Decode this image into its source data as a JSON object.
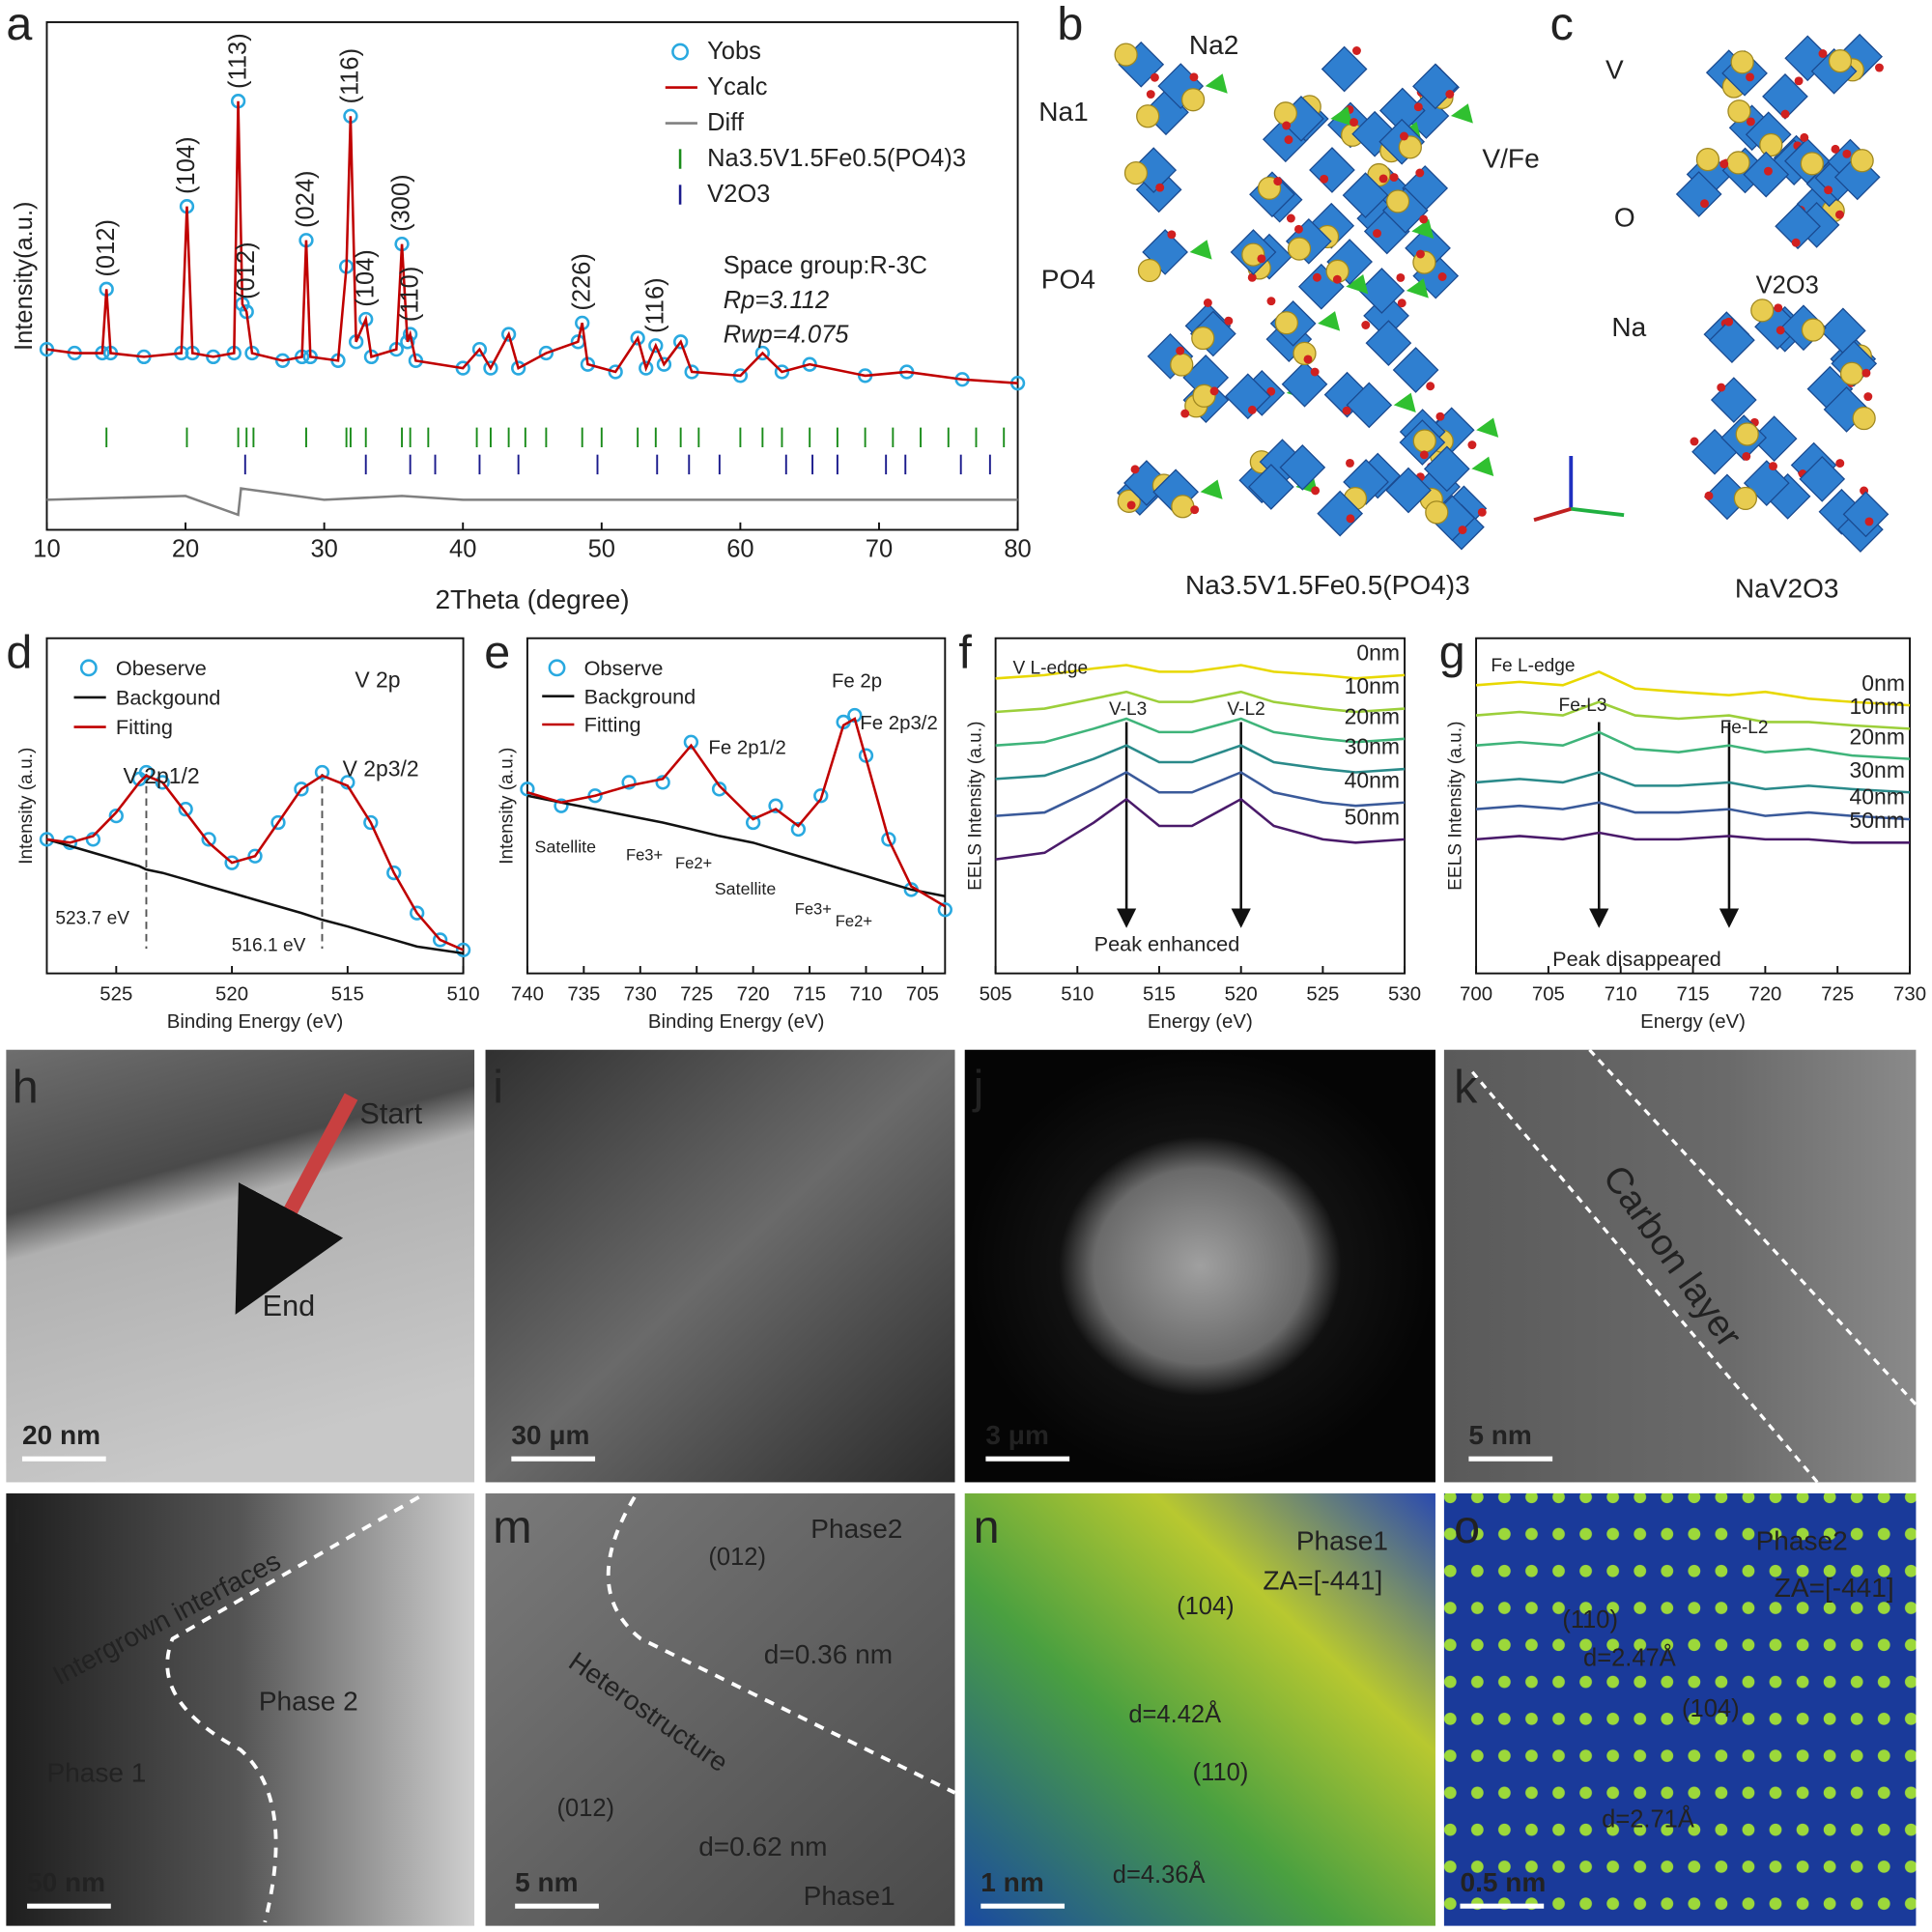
{
  "chart_data": [
    {
      "panel": "a",
      "type": "line",
      "xlabel": "2Theta (degree)",
      "ylabel": "Intensity(a.u.)",
      "xlim": [
        10,
        80
      ],
      "ylim": [
        -30,
        105
      ],
      "xticks": [
        10,
        20,
        30,
        40,
        50,
        60,
        70,
        80
      ],
      "legend": "upper-right",
      "x": [
        10,
        12,
        14,
        14.3,
        14.6,
        17,
        19.7,
        20.1,
        20.5,
        22,
        23.5,
        23.8,
        24.1,
        24.4,
        24.8,
        27,
        28.4,
        28.7,
        29,
        31,
        31.6,
        31.9,
        32.3,
        33,
        33.4,
        35.2,
        35.6,
        36,
        36.2,
        36.6,
        40,
        41.2,
        42,
        43.3,
        44,
        46,
        48.3,
        48.6,
        49,
        51,
        52.6,
        53.2,
        53.9,
        54.5,
        55.7,
        56.5,
        60,
        61.6,
        63,
        65,
        69,
        72,
        76,
        80
      ],
      "series": [
        {
          "name": "Yobs",
          "color": "#29a9e0",
          "marker": "circle",
          "values": [
            18,
            17,
            17,
            34,
            17,
            16,
            17,
            56,
            17,
            16,
            17,
            84,
            30,
            28,
            17,
            15,
            16,
            47,
            16,
            15,
            40,
            80,
            20,
            26,
            16,
            18,
            46,
            20,
            22,
            15,
            13,
            18,
            13,
            22,
            13,
            17,
            20,
            25,
            14,
            12,
            21,
            13,
            19,
            14,
            20,
            12,
            11,
            17,
            12,
            14,
            11,
            12,
            10,
            9
          ]
        },
        {
          "name": "Ycalc",
          "color": "#c00000",
          "marker": "line",
          "values": [
            18,
            17,
            17,
            34,
            17,
            16,
            17,
            56,
            17,
            16,
            17,
            84,
            30,
            28,
            17,
            15,
            16,
            47,
            16,
            15,
            40,
            80,
            20,
            26,
            16,
            18,
            46,
            20,
            22,
            15,
            13,
            18,
            13,
            22,
            13,
            17,
            20,
            25,
            14,
            12,
            21,
            13,
            19,
            14,
            20,
            12,
            11,
            17,
            12,
            14,
            11,
            12,
            10,
            9
          ]
        },
        {
          "name": "Diff",
          "color": "#808080",
          "marker": "line",
          "x": [
            10,
            20,
            23.8,
            24,
            30,
            35.6,
            40,
            50,
            60,
            70,
            80
          ],
          "values": [
            -22,
            -21,
            -26,
            -19,
            -22,
            -21,
            -22,
            -22,
            -22,
            -22,
            -22
          ]
        }
      ],
      "reflections": [
        {
          "name": "Na3.5V1.5Fe0.5(PO4)3",
          "color": "#1a8c1a",
          "x": [
            14.3,
            20.1,
            23.8,
            24.4,
            24.9,
            28.7,
            31.6,
            31.9,
            33,
            35.6,
            36.2,
            37.5,
            41,
            42,
            43.3,
            44.5,
            46,
            48.6,
            50,
            52.6,
            53.9,
            55.7,
            57,
            60,
            61.6,
            63,
            65,
            67,
            69,
            71,
            73,
            75,
            77,
            79
          ]
        },
        {
          "name": "V2O3",
          "color": "#1a1a8c",
          "x": [
            24.3,
            33,
            36.2,
            38,
            41.2,
            44,
            49.7,
            54,
            56.3,
            58.5,
            63.3,
            65.2,
            67,
            70.5,
            71.9,
            75.9,
            78
          ]
        }
      ],
      "peak_labels": [
        {
          "text": "(012)",
          "x": 14.3,
          "color": "#1a8c1a"
        },
        {
          "text": "(104)",
          "x": 20.1,
          "color": "#1a8c1a"
        },
        {
          "text": "(113)",
          "x": 23.8,
          "color": "#1a8c1a"
        },
        {
          "text": "(012)",
          "x": 24.4,
          "color": "#1a1a8c"
        },
        {
          "text": "(024)",
          "x": 28.7,
          "color": "#1a8c1a"
        },
        {
          "text": "(116)",
          "x": 31.9,
          "color": "#1a8c1a"
        },
        {
          "text": "(104)",
          "x": 33,
          "color": "#1a1a8c"
        },
        {
          "text": "(300)",
          "x": 35.6,
          "color": "#1a8c1a"
        },
        {
          "text": "(110)",
          "x": 36.2,
          "color": "#1a1a8c"
        },
        {
          "text": "(226)",
          "x": 48.6,
          "color": "#1a8c1a"
        },
        {
          "text": "(116)",
          "x": 53.9,
          "color": "#1a1a8c"
        }
      ],
      "annotations": [
        "Space group:R-3C",
        "Rp=3.112",
        "Rwp=4.075"
      ]
    },
    {
      "panel": "d",
      "type": "line",
      "xlabel": "Binding Energy (eV)",
      "ylabel": "Intensity (a.u.)",
      "xlim": [
        528,
        510
      ],
      "ylim": [
        0,
        100
      ],
      "xticks": [
        525,
        520,
        515,
        510
      ],
      "legend": "upper-left",
      "marker_style": "dashed",
      "markers": [
        523.7,
        516.1
      ],
      "x": [
        528,
        527,
        526,
        525,
        524,
        523.7,
        523,
        522,
        521,
        520,
        519,
        518,
        517,
        516.1,
        515,
        514,
        513,
        512,
        511,
        510
      ],
      "series": [
        {
          "name": "Obeserve",
          "color": "#29a9e0",
          "marker": "circle",
          "values": [
            40,
            39,
            40,
            47,
            58,
            60,
            57,
            49,
            40,
            33,
            35,
            45,
            55,
            60,
            57,
            45,
            30,
            18,
            10,
            7
          ]
        },
        {
          "name": "Backgound",
          "color": "#111111",
          "marker": "line",
          "values": [
            40,
            38,
            36,
            34,
            32,
            31,
            30,
            28,
            26,
            24,
            22,
            20,
            18,
            16,
            14,
            12,
            10,
            8,
            7,
            6
          ]
        },
        {
          "name": "Fitting",
          "color": "#c00000",
          "marker": "line",
          "values": [
            40,
            39,
            41,
            48,
            57,
            59,
            57,
            48,
            39,
            33,
            35,
            45,
            55,
            59,
            56,
            45,
            30,
            18,
            10,
            7
          ]
        }
      ],
      "annotations": [
        "V 2p",
        "V 2p1/2",
        "V 2p3/2",
        "523.7 eV",
        "516.1 eV"
      ]
    },
    {
      "panel": "e",
      "type": "line",
      "xlabel": "Binding Energy (eV)",
      "ylabel": "Intensity (a.u.)",
      "xlim": [
        740,
        703
      ],
      "ylim": [
        0,
        100
      ],
      "xticks": [
        740,
        735,
        730,
        725,
        720,
        715,
        710,
        705
      ],
      "legend": "upper-left",
      "x": [
        740,
        737,
        734,
        731,
        728,
        725.5,
        723,
        720,
        718,
        716,
        714,
        712,
        711,
        710,
        708,
        706,
        703
      ],
      "series": [
        {
          "name": "Observe",
          "color": "#29a9e0",
          "marker": "circle",
          "values": [
            55,
            50,
            53,
            57,
            57,
            69,
            55,
            45,
            50,
            43,
            53,
            75,
            77,
            65,
            40,
            25,
            19
          ]
        },
        {
          "name": "Background",
          "color": "#111111",
          "marker": "line",
          "values": [
            53,
            51,
            49,
            47,
            45,
            43,
            41,
            39,
            37,
            35,
            33,
            31,
            30,
            29,
            27,
            25,
            23
          ]
        },
        {
          "name": "Fitting",
          "color": "#c00000",
          "marker": "line",
          "values": [
            54,
            51,
            53,
            56,
            58,
            68,
            56,
            46,
            49,
            44,
            52,
            74,
            76,
            64,
            40,
            26,
            20
          ]
        }
      ],
      "annotations": [
        "Fe 2p",
        "Fe 2p1/2",
        "Fe 2p3/2",
        "Satellite",
        "Fe3+",
        "Fe2+",
        "Satellite",
        "Fe3+",
        "Fe2+"
      ]
    },
    {
      "panel": "f",
      "type": "line",
      "xlabel": "Energy (eV)",
      "ylabel": "EELS Intensity (a.u.)",
      "xlim": [
        505,
        530
      ],
      "ylim": [
        0,
        100
      ],
      "xticks": [
        505,
        510,
        515,
        520,
        525,
        530
      ],
      "legend": "series-end",
      "marker_style": "arrow",
      "markers": [
        513,
        520
      ],
      "x": [
        505,
        508,
        511,
        513,
        515,
        517,
        520,
        522,
        525,
        527,
        530
      ],
      "series": [
        {
          "name": "0nm",
          "color": "#e8d800",
          "marker": "line",
          "values": [
            88,
            89,
            91,
            92,
            90,
            90,
            92,
            90,
            89,
            88,
            89
          ]
        },
        {
          "name": "10nm",
          "color": "#9ccf3a",
          "marker": "line",
          "values": [
            78,
            79,
            82,
            84,
            81,
            81,
            84,
            81,
            79,
            78,
            79
          ]
        },
        {
          "name": "20nm",
          "color": "#3fb47a",
          "marker": "line",
          "values": [
            68,
            69,
            73,
            76,
            72,
            72,
            76,
            72,
            70,
            69,
            70
          ]
        },
        {
          "name": "30nm",
          "color": "#2a8a8a",
          "marker": "line",
          "values": [
            58,
            59,
            64,
            68,
            63,
            63,
            68,
            63,
            61,
            60,
            61
          ]
        },
        {
          "name": "40nm",
          "color": "#3a5a9a",
          "marker": "line",
          "values": [
            47,
            48,
            55,
            60,
            54,
            54,
            60,
            54,
            51,
            50,
            51
          ]
        },
        {
          "name": "50nm",
          "color": "#4a1a6a",
          "marker": "line",
          "values": [
            34,
            36,
            45,
            52,
            44,
            44,
            52,
            44,
            40,
            39,
            40
          ]
        }
      ],
      "annotations": [
        "V L-edge",
        "V-L3",
        "V-L2",
        "Peak enhanced"
      ]
    },
    {
      "panel": "g",
      "type": "line",
      "xlabel": "Energy  (eV)",
      "ylabel": "EELS Intensity (a.u.)",
      "xlim": [
        700,
        730
      ],
      "ylim": [
        0,
        100
      ],
      "xticks": [
        700,
        705,
        710,
        715,
        720,
        725,
        730
      ],
      "legend": "series-end",
      "marker_style": "arrow",
      "markers": [
        708.5,
        717.5
      ],
      "x": [
        700,
        703,
        706,
        708.5,
        711,
        714,
        717.5,
        720,
        723,
        726,
        730
      ],
      "series": [
        {
          "name": "0nm",
          "color": "#e8d800",
          "marker": "line",
          "values": [
            86,
            87,
            86,
            90,
            85,
            84,
            83,
            84,
            82,
            81,
            80
          ]
        },
        {
          "name": "10nm",
          "color": "#9ccf3a",
          "marker": "line",
          "values": [
            77,
            78,
            77,
            81,
            77,
            76,
            77,
            75,
            75,
            74,
            73
          ]
        },
        {
          "name": "20nm",
          "color": "#3fb47a",
          "marker": "line",
          "values": [
            68,
            69,
            68,
            72,
            67,
            66,
            68,
            66,
            67,
            65,
            64
          ]
        },
        {
          "name": "30nm",
          "color": "#2a8a8a",
          "marker": "line",
          "values": [
            57,
            58,
            57,
            60,
            56,
            56,
            57,
            55,
            56,
            55,
            54
          ]
        },
        {
          "name": "40nm",
          "color": "#3a5a9a",
          "marker": "line",
          "values": [
            49,
            50,
            49,
            51,
            48,
            48,
            49,
            47,
            48,
            47,
            46
          ]
        },
        {
          "name": "50nm",
          "color": "#4a1a6a",
          "marker": "line",
          "values": [
            40,
            41,
            40,
            42,
            40,
            40,
            41,
            40,
            40,
            39,
            39
          ]
        }
      ],
      "annotations": [
        "Fe L-edge",
        "Fe-L3",
        "Fe-L2",
        "Peak disappeared"
      ]
    }
  ],
  "figures": [
    {
      "panel": "b",
      "texts": [
        "Na1",
        "Na2",
        "V/Fe",
        "PO4",
        "Na3.5V1.5Fe0.5(PO4)3"
      ]
    },
    {
      "panel": "c",
      "texts": [
        "V",
        "O",
        "V2O3",
        "Na",
        "NaV2O3"
      ]
    },
    {
      "panel": "h",
      "texts": [
        "Start",
        "End",
        "20 nm"
      ]
    },
    {
      "panel": "i",
      "texts": [
        "30 μm"
      ]
    },
    {
      "panel": "j",
      "texts": [
        "3 μm"
      ]
    },
    {
      "panel": "k",
      "texts": [
        "Carbon layer",
        "5 nm"
      ]
    },
    {
      "panel": "l",
      "texts": [
        "Intergrown interfaces",
        "Phase 2",
        "Phase 1",
        "50 nm"
      ]
    },
    {
      "panel": "m",
      "texts": [
        "Phase2",
        "(012)",
        "d=0.36 nm",
        "Heterostructure",
        "(012)",
        "d=0.62 nm",
        "Phase1",
        "5 nm"
      ]
    },
    {
      "panel": "n",
      "texts": [
        "Phase1",
        "ZA=[-441]",
        "(104)",
        "d=4.42Å",
        "(110)",
        "d=4.36Å",
        "1 nm"
      ]
    },
    {
      "panel": "o",
      "texts": [
        "Phase2",
        "ZA=[-441]",
        "(110)",
        "d=2.47Å",
        "(104)",
        "d=2.71Å",
        "0.5 nm"
      ]
    }
  ]
}
